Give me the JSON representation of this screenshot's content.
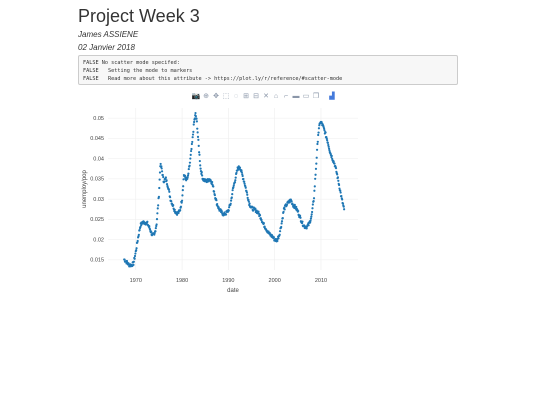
{
  "page": {
    "title": "Project Week 3",
    "author": "James ASSIENE",
    "date": "02 Janvier 2018"
  },
  "console": {
    "lines": [
      "FALSE No scatter mode specifed:",
      "FALSE   Setting the mode to markers",
      "FALSE   Read more about this attribute -> https://plot.ly/r/reference/#scatter-mode"
    ]
  },
  "toolbar": [
    {
      "name": "camera-icon",
      "glyph": "📷"
    },
    {
      "name": "zoom-icon",
      "glyph": "⊕"
    },
    {
      "name": "pan-icon",
      "glyph": "✥"
    },
    {
      "name": "box-select-icon",
      "glyph": "⬚"
    },
    {
      "name": "lasso-select-icon",
      "glyph": "◌"
    },
    {
      "name": "zoom-in-icon",
      "glyph": "⊞"
    },
    {
      "name": "zoom-out-icon",
      "glyph": "⊟"
    },
    {
      "name": "autoscale-icon",
      "glyph": "✕"
    },
    {
      "name": "reset-axes-icon",
      "glyph": "⌂"
    },
    {
      "name": "spike-lines-icon",
      "glyph": "⌐"
    },
    {
      "name": "hover-closest-icon",
      "glyph": "▬"
    },
    {
      "name": "hover-compare-icon",
      "glyph": "▭"
    },
    {
      "name": "collaborate-icon",
      "glyph": "❐"
    },
    {
      "name": "plotly-logo-icon",
      "glyph": "▟"
    }
  ],
  "colors": {
    "marker": "#1f77b4",
    "grid": "#eeeeee",
    "axis_text": "#444444"
  },
  "chart_data": {
    "type": "scatter",
    "xlabel": "date",
    "ylabel": "unemploy/pop",
    "xlim": [
      "1964-01-01",
      "2018-01-01"
    ],
    "ylim": [
      0.0125,
      0.0525
    ],
    "xticks": [
      "1970",
      "1980",
      "1990",
      "2000",
      "2010"
    ],
    "yticks": [
      "0.015",
      "0.02",
      "0.025",
      "0.03",
      "0.035",
      "0.04",
      "0.045",
      "0.05"
    ],
    "grid": true,
    "anchors": [
      [
        1967.5,
        0.0151
      ],
      [
        1968.0,
        0.0145
      ],
      [
        1968.5,
        0.0138
      ],
      [
        1969.0,
        0.0137
      ],
      [
        1969.5,
        0.0141
      ],
      [
        1970.0,
        0.017
      ],
      [
        1970.5,
        0.0205
      ],
      [
        1971.0,
        0.0235
      ],
      [
        1971.5,
        0.0243
      ],
      [
        1972.0,
        0.0242
      ],
      [
        1972.5,
        0.024
      ],
      [
        1973.0,
        0.0228
      ],
      [
        1973.5,
        0.0213
      ],
      [
        1974.0,
        0.021
      ],
      [
        1974.5,
        0.024
      ],
      [
        1975.0,
        0.031
      ],
      [
        1975.3,
        0.0385
      ],
      [
        1975.6,
        0.0375
      ],
      [
        1976.0,
        0.0345
      ],
      [
        1976.5,
        0.035
      ],
      [
        1977.0,
        0.033
      ],
      [
        1977.5,
        0.03
      ],
      [
        1978.0,
        0.0285
      ],
      [
        1978.5,
        0.027
      ],
      [
        1979.0,
        0.0265
      ],
      [
        1979.5,
        0.027
      ],
      [
        1980.0,
        0.03
      ],
      [
        1980.4,
        0.036
      ],
      [
        1980.8,
        0.035
      ],
      [
        1981.2,
        0.035
      ],
      [
        1981.7,
        0.039
      ],
      [
        1982.2,
        0.044
      ],
      [
        1982.6,
        0.049
      ],
      [
        1982.9,
        0.051
      ],
      [
        1983.2,
        0.049
      ],
      [
        1983.6,
        0.043
      ],
      [
        1984.0,
        0.0375
      ],
      [
        1984.5,
        0.035
      ],
      [
        1985.0,
        0.0345
      ],
      [
        1985.5,
        0.0345
      ],
      [
        1986.0,
        0.035
      ],
      [
        1986.5,
        0.034
      ],
      [
        1987.0,
        0.0315
      ],
      [
        1987.5,
        0.029
      ],
      [
        1988.0,
        0.0275
      ],
      [
        1988.5,
        0.0268
      ],
      [
        1989.0,
        0.0262
      ],
      [
        1989.5,
        0.0265
      ],
      [
        1990.0,
        0.0272
      ],
      [
        1990.5,
        0.029
      ],
      [
        1991.0,
        0.0325
      ],
      [
        1991.5,
        0.035
      ],
      [
        1992.0,
        0.0375
      ],
      [
        1992.5,
        0.038
      ],
      [
        1993.0,
        0.036
      ],
      [
        1993.5,
        0.034
      ],
      [
        1994.0,
        0.0315
      ],
      [
        1994.5,
        0.029
      ],
      [
        1995.0,
        0.0278
      ],
      [
        1995.5,
        0.0275
      ],
      [
        1996.0,
        0.0272
      ],
      [
        1996.5,
        0.0265
      ],
      [
        1997.0,
        0.0255
      ],
      [
        1997.5,
        0.024
      ],
      [
        1998.0,
        0.023
      ],
      [
        1998.5,
        0.022
      ],
      [
        1999.0,
        0.0212
      ],
      [
        1999.5,
        0.0208
      ],
      [
        2000.0,
        0.02
      ],
      [
        2000.5,
        0.0198
      ],
      [
        2001.0,
        0.0212
      ],
      [
        2001.5,
        0.024
      ],
      [
        2002.0,
        0.0275
      ],
      [
        2002.5,
        0.0285
      ],
      [
        2003.0,
        0.0292
      ],
      [
        2003.5,
        0.0298
      ],
      [
        2004.0,
        0.0285
      ],
      [
        2004.5,
        0.028
      ],
      [
        2005.0,
        0.027
      ],
      [
        2005.5,
        0.0255
      ],
      [
        2006.0,
        0.024
      ],
      [
        2006.5,
        0.0232
      ],
      [
        2007.0,
        0.0232
      ],
      [
        2007.5,
        0.024
      ],
      [
        2008.0,
        0.026
      ],
      [
        2008.5,
        0.0305
      ],
      [
        2009.0,
        0.039
      ],
      [
        2009.4,
        0.046
      ],
      [
        2009.8,
        0.049
      ],
      [
        2010.2,
        0.0487
      ],
      [
        2010.6,
        0.0475
      ],
      [
        2011.0,
        0.046
      ],
      [
        2011.5,
        0.044
      ],
      [
        2012.0,
        0.0415
      ],
      [
        2012.5,
        0.04
      ],
      [
        2013.0,
        0.0385
      ],
      [
        2013.5,
        0.036
      ],
      [
        2014.0,
        0.033
      ],
      [
        2014.5,
        0.03
      ],
      [
        2015.0,
        0.0275
      ]
    ]
  }
}
